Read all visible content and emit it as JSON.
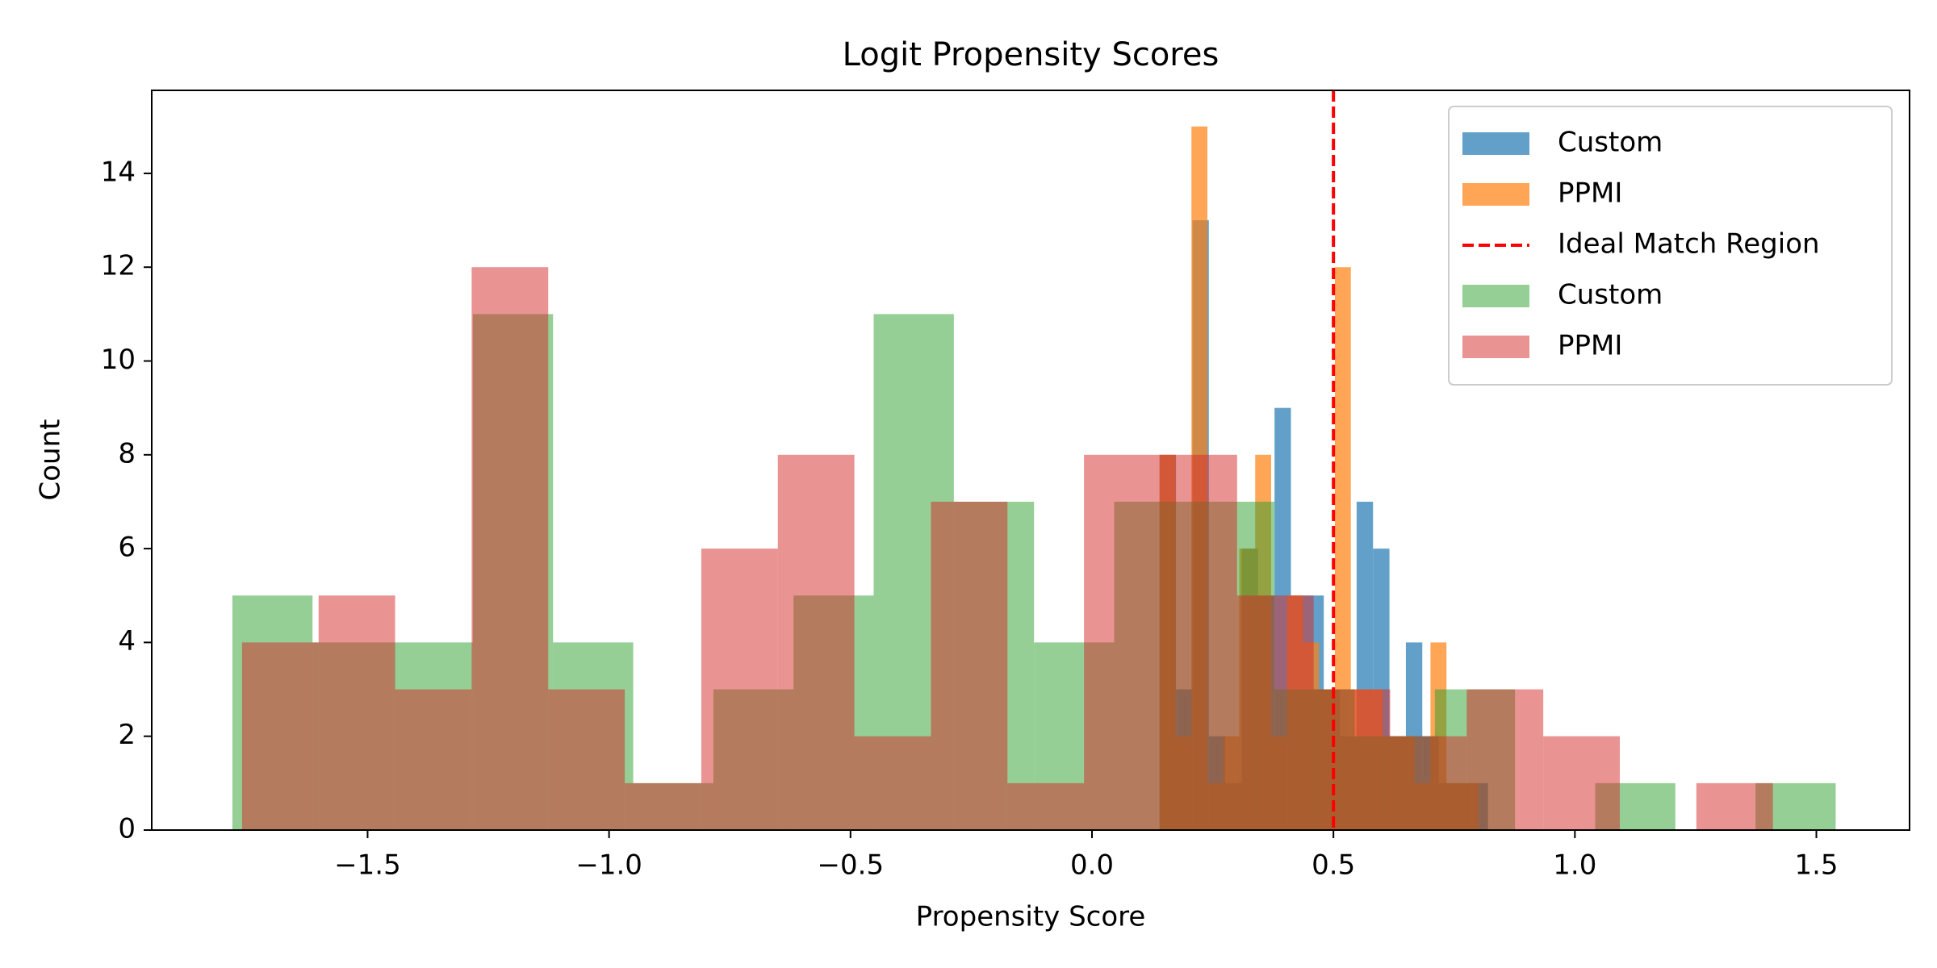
{
  "chart_data": {
    "type": "histogram",
    "title": "Logit Propensity Scores",
    "x_label": "Propensity Score",
    "y_label": "Count",
    "xlim": [
      -1.947,
      1.693
    ],
    "ylim": [
      0,
      15.77
    ],
    "xticks": [
      {
        "value": -1.5,
        "label": "−1.5"
      },
      {
        "value": -1.0,
        "label": "−1.0"
      },
      {
        "value": -0.5,
        "label": "−0.5"
      },
      {
        "value": 0.0,
        "label": "0.0"
      },
      {
        "value": 0.5,
        "label": "0.5"
      },
      {
        "value": 1.0,
        "label": "1.0"
      },
      {
        "value": 1.5,
        "label": "1.5"
      }
    ],
    "yticks": [
      0,
      2,
      4,
      6,
      8,
      10,
      12,
      14
    ],
    "legend": "upper right",
    "series": [
      {
        "name": "Custom",
        "type": "histogram",
        "color": "#1f77b4",
        "opacity": 0.7,
        "bins": [
          0.14,
          0.174,
          0.208,
          0.242,
          0.276,
          0.31,
          0.344,
          0.378,
          0.412,
          0.446,
          0.48,
          0.514,
          0.548,
          0.582,
          0.616,
          0.65,
          0.684,
          0.718,
          0.752,
          0.786,
          0.82
        ],
        "values": [
          8,
          3,
          13,
          2,
          1,
          6,
          5,
          9,
          5,
          5,
          3,
          2,
          7,
          6,
          2,
          4,
          2,
          1,
          1,
          1
        ]
      },
      {
        "name": "PPMI",
        "type": "histogram",
        "color": "#ff7f0e",
        "opacity": 0.7,
        "bins": [
          0.14,
          0.173,
          0.206,
          0.239,
          0.272,
          0.305,
          0.338,
          0.371,
          0.404,
          0.437,
          0.47,
          0.503,
          0.536,
          0.569,
          0.602,
          0.635,
          0.668,
          0.701,
          0.734,
          0.767,
          0.8
        ],
        "values": [
          8,
          2,
          15,
          1,
          2,
          6,
          8,
          2,
          5,
          4,
          3,
          12,
          3,
          3,
          2,
          2,
          1,
          4,
          1,
          1
        ]
      },
      {
        "name": "Ideal Match Region",
        "type": "vline",
        "color": "#ff0000",
        "x": 0.5,
        "linestyle": "dashed"
      },
      {
        "name": "Custom",
        "type": "histogram",
        "color": "#2ca02c",
        "opacity": 0.5,
        "bins": [
          -1.78,
          -1.614,
          -1.448,
          -1.282,
          -1.116,
          -0.95,
          -0.784,
          -0.618,
          -0.452,
          -0.286,
          -0.12,
          0.046,
          0.212,
          0.378,
          0.544,
          0.71,
          0.876,
          1.042,
          1.208,
          1.374,
          1.54
        ],
        "values": [
          5,
          4,
          4,
          11,
          4,
          1,
          3,
          5,
          11,
          7,
          4,
          7,
          7,
          3,
          2,
          3,
          0,
          1,
          0,
          1
        ]
      },
      {
        "name": "PPMI",
        "type": "histogram",
        "color": "#d62728",
        "opacity": 0.5,
        "bins": [
          -1.76,
          -1.6015,
          -1.443,
          -1.2845,
          -1.126,
          -0.9675,
          -0.809,
          -0.6505,
          -0.492,
          -0.3335,
          -0.175,
          -0.0165,
          0.142,
          0.3005,
          0.459,
          0.6175,
          0.776,
          0.9345,
          1.093,
          1.2515,
          1.41
        ],
        "values": [
          4,
          5,
          3,
          12,
          3,
          1,
          6,
          8,
          2,
          7,
          1,
          8,
          8,
          5,
          3,
          2,
          3,
          2,
          0,
          1
        ]
      }
    ]
  }
}
